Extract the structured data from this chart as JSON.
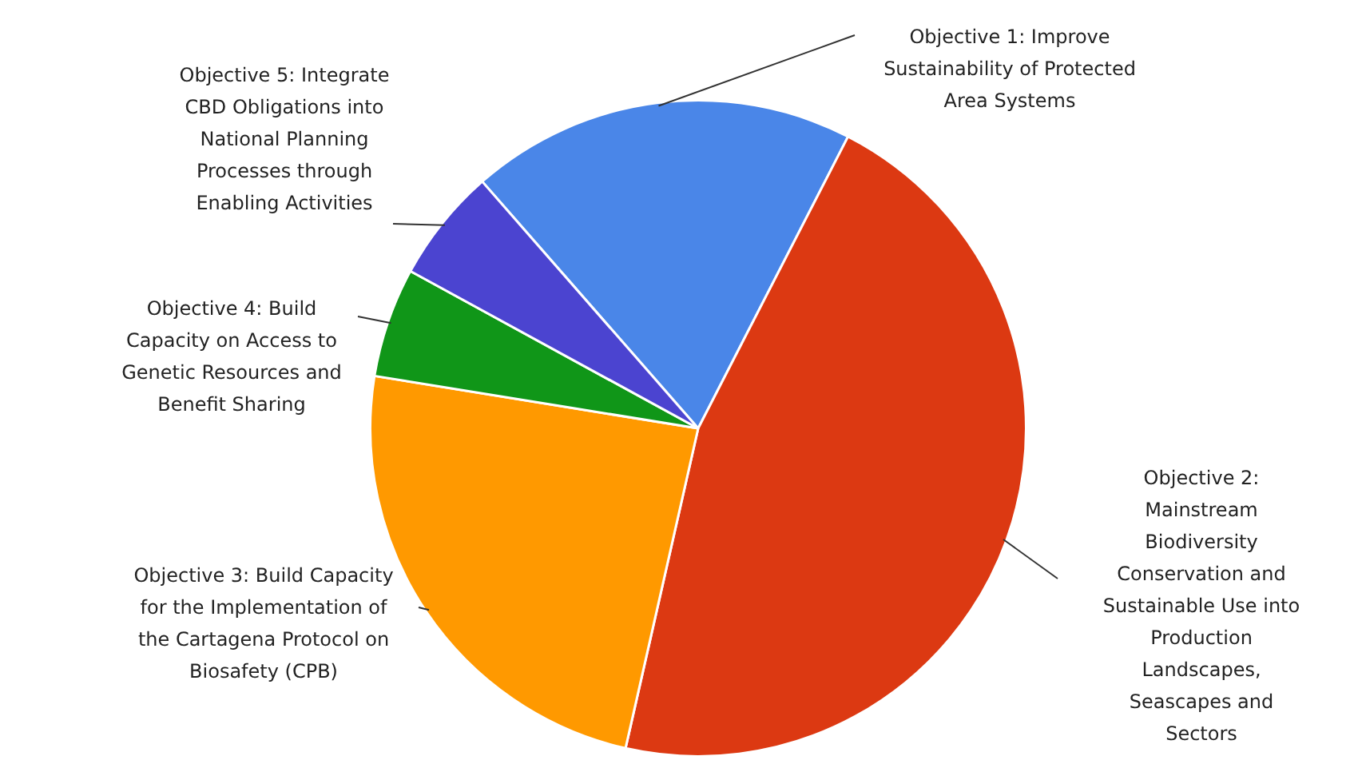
{
  "chart_data": {
    "type": "pie",
    "categories": [
      "Objective 1: Improve Sustainability of Protected Area Systems",
      "Objective 2: Mainstream Biodiversity Conservation and Sustainable Use into Production Landscapes, Seascapes and Sectors",
      "Objective 3: Build Capacity for the Implementation of the Cartagena Protocol on Biosafety (CPB)",
      "Objective 4: Build Capacity on Access to Genetic Resources and Benefit Sharing",
      "Objective 5: Integrate CBD Obligations into National Planning Processes through Enabling Activities"
    ],
    "values": [
      19,
      46,
      24,
      5.4,
      5.6
    ],
    "colors": [
      "#4a86e8",
      "#dc3912",
      "#ff9900",
      "#109618",
      "#4b44d0"
    ],
    "legend": false
  }
}
